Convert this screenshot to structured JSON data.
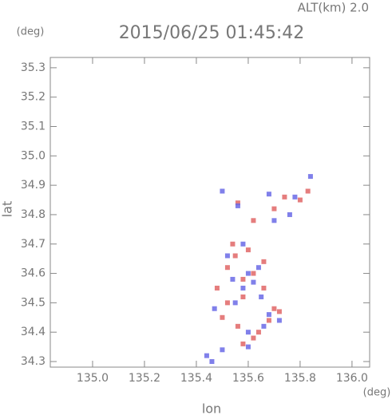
{
  "chart_data": {
    "type": "scatter",
    "title": "2015/06/25 01:45:42",
    "subtitle": "ALT(km) 2.0",
    "x_label": "lon",
    "y_label": "lat",
    "x_unit": "(deg)",
    "y_unit": "(deg)",
    "xlim": [
      134.837,
      136.068
    ],
    "ylim": [
      34.281,
      35.335
    ],
    "xticks": [
      {
        "value": 135.0,
        "label": "135.0"
      },
      135.2,
      135.4,
      135.6,
      135.8,
      {
        "value": 136.0,
        "label": "136.0"
      }
    ],
    "yticks": [
      34.3,
      34.4,
      34.5,
      34.6,
      34.7,
      34.8,
      34.9,
      {
        "value": 35.0,
        "label": "35.0"
      },
      35.1,
      35.2,
      35.3
    ],
    "series": [
      {
        "color": "#e06666",
        "x": [
          135.52,
          135.55,
          135.58,
          135.62,
          135.66,
          135.7,
          135.5,
          135.56,
          135.64,
          135.68,
          135.72,
          135.58,
          135.62,
          135.54,
          135.6,
          135.7,
          135.74,
          135.8,
          135.83,
          135.48,
          135.52,
          135.58,
          135.66,
          135.62,
          135.56
        ],
        "y": [
          34.62,
          34.66,
          34.58,
          34.6,
          34.64,
          34.48,
          34.45,
          34.42,
          34.4,
          34.44,
          34.47,
          34.36,
          34.38,
          34.7,
          34.68,
          34.82,
          34.86,
          34.85,
          34.88,
          34.55,
          34.5,
          34.52,
          34.55,
          34.78,
          34.84
        ]
      },
      {
        "color": "#6a6ae6",
        "x": [
          135.6,
          135.62,
          135.58,
          135.65,
          135.55,
          135.68,
          135.47,
          135.5,
          135.6,
          135.66,
          135.72,
          135.52,
          135.58,
          135.7,
          135.76,
          135.5,
          135.56,
          135.68,
          135.78,
          135.84,
          135.46,
          135.64,
          135.6,
          135.54,
          135.44
        ],
        "y": [
          34.6,
          34.57,
          34.55,
          34.52,
          34.5,
          34.46,
          34.48,
          34.34,
          34.35,
          34.42,
          34.44,
          34.66,
          34.7,
          34.78,
          34.8,
          34.88,
          34.83,
          34.87,
          34.86,
          34.93,
          34.3,
          34.62,
          34.4,
          34.58,
          34.32
        ]
      }
    ]
  }
}
